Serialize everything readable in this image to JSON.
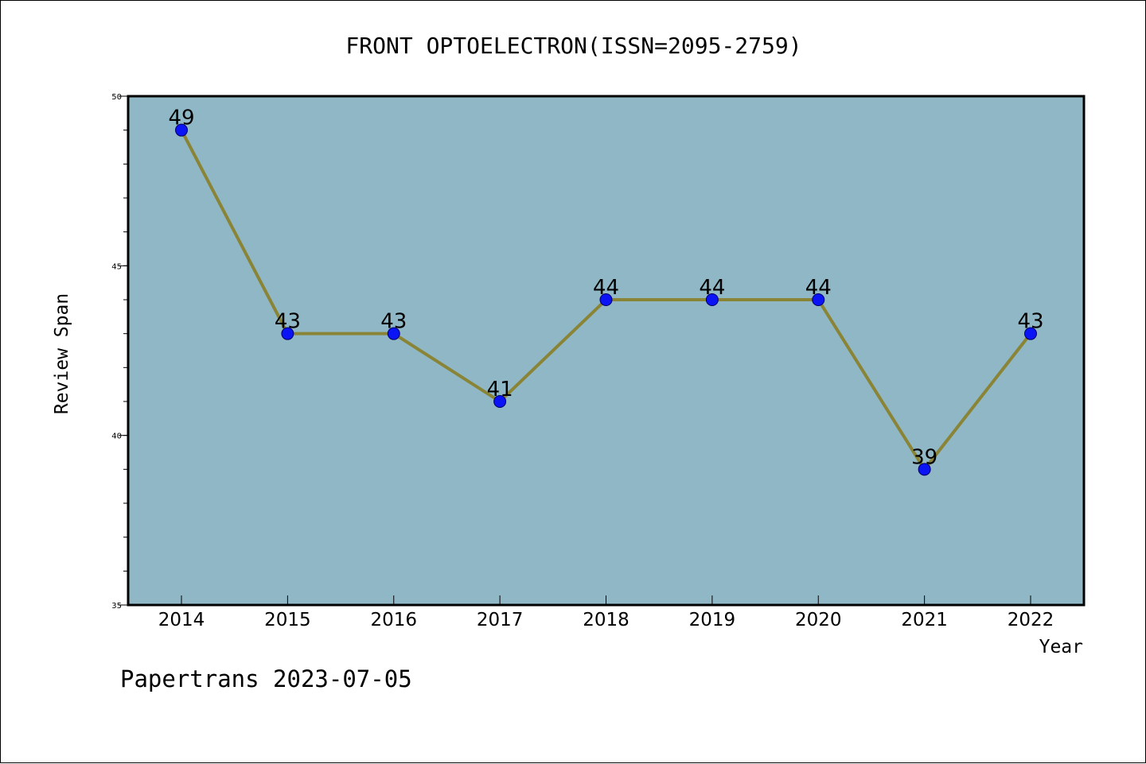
{
  "chart_data": {
    "type": "line",
    "title": "FRONT OPTOELECTRON(ISSN=2095-2759)",
    "xlabel": "Year",
    "ylabel": "Review Span",
    "footer": "Papertrans 2023-07-05",
    "categories": [
      "2014",
      "2015",
      "2016",
      "2017",
      "2018",
      "2019",
      "2020",
      "2021",
      "2022"
    ],
    "values": [
      49,
      43,
      43,
      41,
      44,
      44,
      44,
      39,
      43
    ],
    "ylim": [
      35,
      50
    ],
    "y_ticks": [
      35,
      40,
      45,
      50
    ],
    "y_tick_labels": [
      "35",
      "40",
      "45",
      "50"
    ],
    "grid": false,
    "show_data_labels": true,
    "colors": {
      "plot_background": "#8fb7c6",
      "line": "#8a8436",
      "marker": "#0a14f5",
      "marker_edge": "#000066",
      "axis": "#000000",
      "text": "#000000"
    }
  }
}
